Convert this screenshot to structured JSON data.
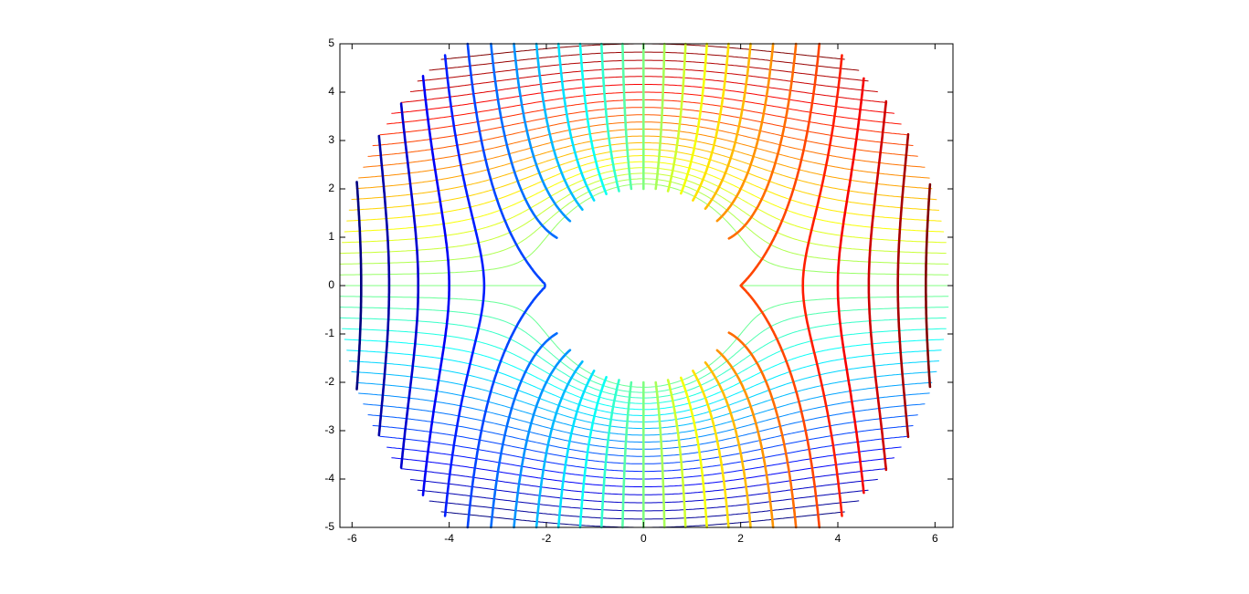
{
  "chart_data": {
    "type": "contour",
    "colormap": "jet",
    "xlim": [
      -6.25,
      6.37
    ],
    "ylim": [
      -5,
      5
    ],
    "xticks": [
      -6,
      -4,
      -2,
      0,
      2,
      4,
      6
    ],
    "yticks": [
      -5,
      -4,
      -3,
      -2,
      -1,
      0,
      1,
      2,
      3,
      4,
      5
    ],
    "domain_radii": [
      2,
      6.3
    ],
    "potential_levels": [
      -6.5,
      -6,
      -5.5,
      -5,
      -4.5,
      -4,
      -3.5,
      -3,
      -2.5,
      -2,
      -1.5,
      -1,
      -0.5,
      0,
      0.5,
      1,
      1.5,
      2,
      2.5,
      3,
      3.5,
      4,
      4.5,
      5,
      5.5,
      6,
      6.5
    ],
    "stream_levels": [
      -4.2,
      -4,
      -3.8,
      -3.6,
      -3.4,
      -3.2,
      -3,
      -2.8,
      -2.6,
      -2.4,
      -2.2,
      -2,
      -1.8,
      -1.6,
      -1.4,
      -1.2,
      -1,
      -0.8,
      -0.6,
      -0.4,
      -0.2,
      0,
      0.2,
      0.4,
      0.6,
      0.8,
      1,
      1.2,
      1.4,
      1.6,
      1.8,
      2,
      2.2,
      2.4,
      2.6,
      2.8,
      3,
      3.2,
      3.4,
      3.6,
      3.8,
      4,
      4.2
    ]
  }
}
